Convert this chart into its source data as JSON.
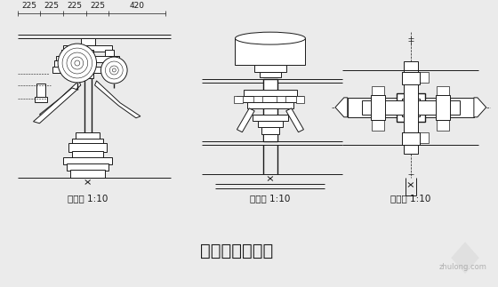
{
  "bg_color": "#ebebeb",
  "line_color": "#1a1a1a",
  "title": "柱头科斗拱详图",
  "label1": "剖面图 1:10",
  "label2": "立面图 1:10",
  "label3": "平面图 1:10",
  "dim_labels": [
    "225",
    "225",
    "225",
    "225",
    "420"
  ],
  "watermark": "zhulong.com",
  "title_fontsize": 14,
  "label_fontsize": 7.5,
  "dim_fontsize": 6.5
}
